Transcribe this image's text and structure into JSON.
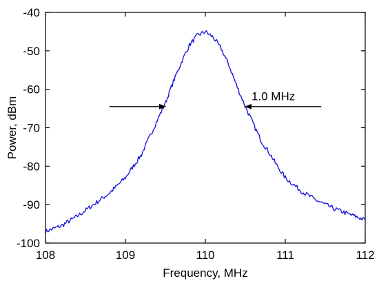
{
  "chart_data": {
    "type": "line",
    "title": "",
    "xlabel": "Frequency, MHz",
    "ylabel": "Power, dBm",
    "xlim": [
      108,
      112
    ],
    "ylim": [
      -100,
      -40
    ],
    "x_ticks": [
      108,
      109,
      110,
      111,
      112
    ],
    "x_tick_labels": [
      "108",
      "109",
      "110",
      "111",
      "112"
    ],
    "y_ticks": [
      -100,
      -90,
      -80,
      -70,
      -60,
      -50,
      -40
    ],
    "y_tick_labels": [
      "-100",
      "-90",
      "-80",
      "-70",
      "-60",
      "-50",
      "-40"
    ],
    "grid": false,
    "legend": "none",
    "line_color": "#1a1adc",
    "series": [
      {
        "x": [
          108.0,
          108.2,
          108.4,
          108.6,
          108.8,
          109.0,
          109.1,
          109.2,
          109.3,
          109.4,
          109.5,
          109.6,
          109.7,
          109.8,
          109.9,
          110.0,
          110.1,
          110.2,
          110.3,
          110.4,
          110.5,
          110.6,
          110.7,
          110.8,
          110.9,
          111.0,
          111.2,
          111.4,
          111.6,
          111.8,
          112.0
        ],
        "y": [
          -97.0,
          -95.5,
          -93.0,
          -90.0,
          -87.0,
          -83.0,
          -80.0,
          -77.0,
          -72.5,
          -68.0,
          -63.5,
          -58.0,
          -53.0,
          -48.5,
          -46.0,
          -45.0,
          -46.5,
          -49.5,
          -54.0,
          -59.5,
          -64.5,
          -69.0,
          -73.5,
          -76.5,
          -80.0,
          -83.0,
          -86.5,
          -89.0,
          -91.0,
          -92.5,
          -94.0
        ]
      }
    ],
    "annotations": [
      {
        "text": "1.0 MHz",
        "at": [
          110.85,
          -62.8
        ]
      },
      {
        "type": "arrow",
        "from": [
          108.8,
          -64.5
        ],
        "to": [
          109.5,
          -64.5
        ]
      },
      {
        "type": "arrow",
        "from": [
          111.45,
          -64.5
        ],
        "to": [
          110.5,
          -64.5
        ]
      }
    ]
  }
}
